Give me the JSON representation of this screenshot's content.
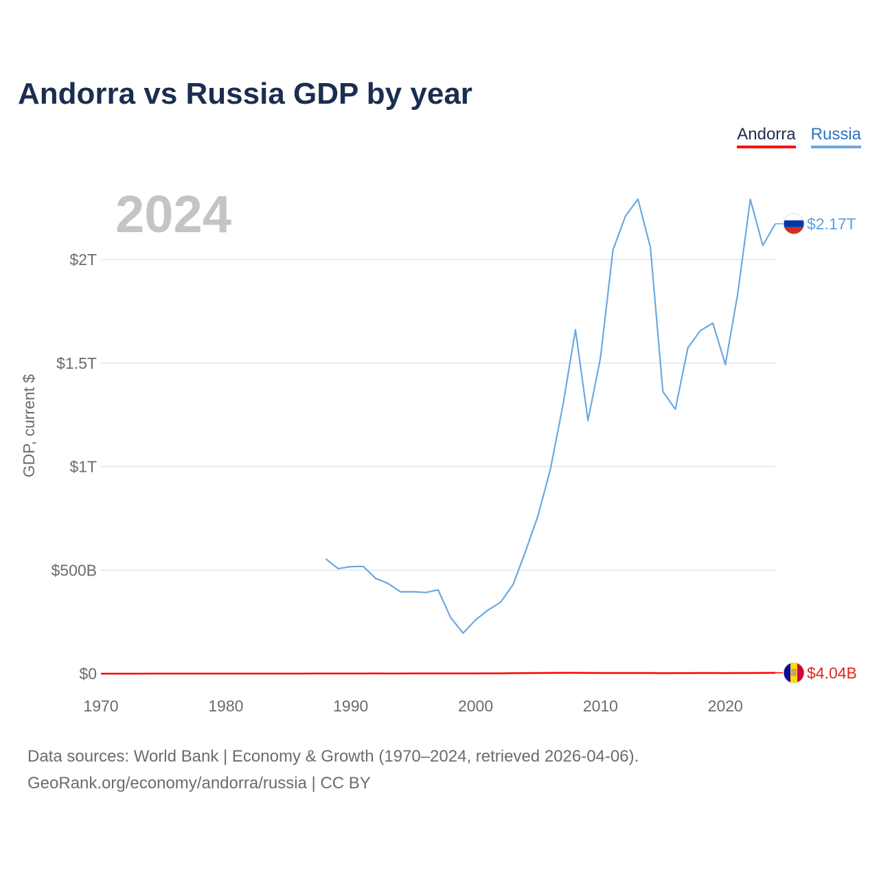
{
  "title": "Andorra vs Russia GDP by year",
  "legend": [
    {
      "label": "Andorra",
      "color": "#ff0000"
    },
    {
      "label": "Russia",
      "color": "#6aa8e0"
    }
  ],
  "year_watermark": "2024",
  "footer": {
    "line1": "Data sources: World Bank | Economy & Growth (1970–2024, retrieved 2026-04-06).",
    "line2": "GeoRank.org/economy/andorra/russia | CC BY"
  },
  "chart_data": {
    "type": "line",
    "title": "Andorra vs Russia GDP by year",
    "xlabel": "",
    "ylabel": "GDP, current $",
    "xlim": [
      1970,
      2024
    ],
    "ylim": [
      0,
      2.3
    ],
    "y_unit": "trillion USD",
    "x_ticks": [
      {
        "value": 1970,
        "label": "1970"
      },
      {
        "value": 1980,
        "label": "1980"
      },
      {
        "value": 1990,
        "label": "1990"
      },
      {
        "value": 2000,
        "label": "2000"
      },
      {
        "value": 2010,
        "label": "2010"
      },
      {
        "value": 2020,
        "label": "2020"
      }
    ],
    "y_ticks": [
      {
        "value": 0,
        "label": "$0"
      },
      {
        "value": 0.5,
        "label": "$500B"
      },
      {
        "value": 1.0,
        "label": "$1T"
      },
      {
        "value": 1.5,
        "label": "$1.5T"
      },
      {
        "value": 2.0,
        "label": "$2T"
      }
    ],
    "grid": true,
    "legend_position": "top-right",
    "series": [
      {
        "name": "Russia",
        "color": "#6aa8e0",
        "end_label": "$2.17T",
        "x": [
          1988,
          1989,
          1990,
          1991,
          1992,
          1993,
          1994,
          1995,
          1996,
          1997,
          1998,
          1999,
          2000,
          2001,
          2002,
          2003,
          2004,
          2005,
          2006,
          2007,
          2008,
          2009,
          2010,
          2011,
          2012,
          2013,
          2014,
          2015,
          2016,
          2017,
          2018,
          2019,
          2020,
          2021,
          2022,
          2023,
          2024
        ],
        "values": [
          0.555,
          0.507,
          0.517,
          0.518,
          0.46,
          0.435,
          0.395,
          0.396,
          0.392,
          0.405,
          0.271,
          0.196,
          0.26,
          0.307,
          0.345,
          0.43,
          0.591,
          0.764,
          0.99,
          1.3,
          1.661,
          1.223,
          1.525,
          2.046,
          2.21,
          2.292,
          2.059,
          1.363,
          1.277,
          1.574,
          1.657,
          1.693,
          1.493,
          1.837,
          2.291,
          2.068,
          2.173
        ]
      },
      {
        "name": "Andorra",
        "color": "#ff0000",
        "end_label": "$4.04B",
        "x": [
          1970,
          1971,
          1972,
          1973,
          1974,
          1975,
          1976,
          1977,
          1978,
          1979,
          1980,
          1981,
          1982,
          1983,
          1984,
          1985,
          1986,
          1987,
          1988,
          1989,
          1990,
          1991,
          1992,
          1993,
          1994,
          1995,
          1996,
          1997,
          1998,
          1999,
          2000,
          2001,
          2002,
          2003,
          2004,
          2005,
          2006,
          2007,
          2008,
          2009,
          2010,
          2011,
          2012,
          2013,
          2014,
          2015,
          2016,
          2017,
          2018,
          2019,
          2020,
          2021,
          2022,
          2023,
          2024
        ],
        "values": [
          7.86e-05,
          8.92e-05,
          0.000113,
          0.000151,
          0.000186,
          0.00022,
          0.000227,
          0.000254,
          0.000308,
          0.000411,
          0.000446,
          0.000389,
          0.000376,
          0.000327,
          0.000331,
          0.000346,
          0.000482,
          0.000611,
          0.000721,
          0.000795,
          0.001029,
          0.001107,
          0.00121,
          0.001007,
          0.001018,
          0.001178,
          0.001224,
          0.00118,
          0.001212,
          0.001239,
          0.001434,
          0.001497,
          0.001733,
          0.002398,
          0.002935,
          0.003255,
          0.003543,
          0.004016,
          0.004008,
          0.003661,
          0.003356,
          0.003428,
          0.003155,
          0.003247,
          0.003273,
          0.00279,
          0.002897,
          0.003,
          0.003218,
          0.003155,
          0.002891,
          0.003325,
          0.003381,
          0.003785,
          0.00404
        ]
      }
    ]
  }
}
